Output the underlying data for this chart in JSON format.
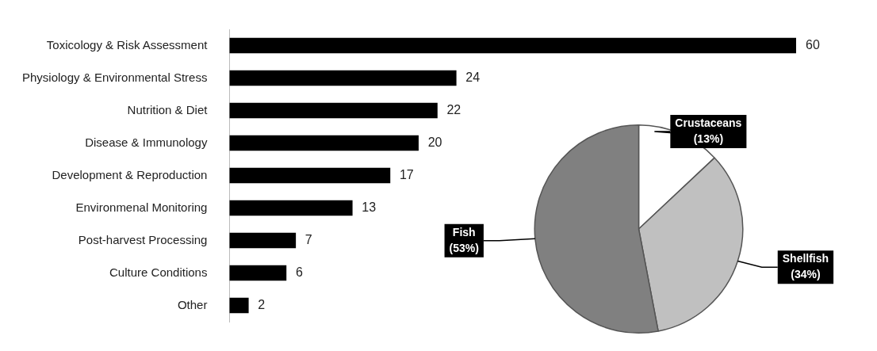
{
  "chart_data": [
    {
      "type": "bar",
      "orientation": "horizontal",
      "categories": [
        "Toxicology & Risk Assessment",
        "Physiology & Environmental Stress",
        "Nutrition & Diet",
        "Disease & Immunology",
        "Development & Reproduction",
        "Environmenal Monitoring",
        "Post-harvest Processing",
        "Culture Conditions",
        "Other"
      ],
      "values": [
        60,
        24,
        22,
        20,
        17,
        13,
        7,
        6,
        2
      ],
      "color": "#000000",
      "xlim": [
        0,
        60
      ],
      "data_labels": true,
      "legend": false
    },
    {
      "type": "pie",
      "categories": [
        "Crustaceans",
        "Shellfish",
        "Fish"
      ],
      "values": [
        13,
        34,
        53
      ],
      "colors": [
        "#ffffff",
        "#c0c0c0",
        "#808080"
      ],
      "value_labels": [
        "(13%)",
        "(34%)",
        "(53%)"
      ],
      "legend": false
    }
  ]
}
